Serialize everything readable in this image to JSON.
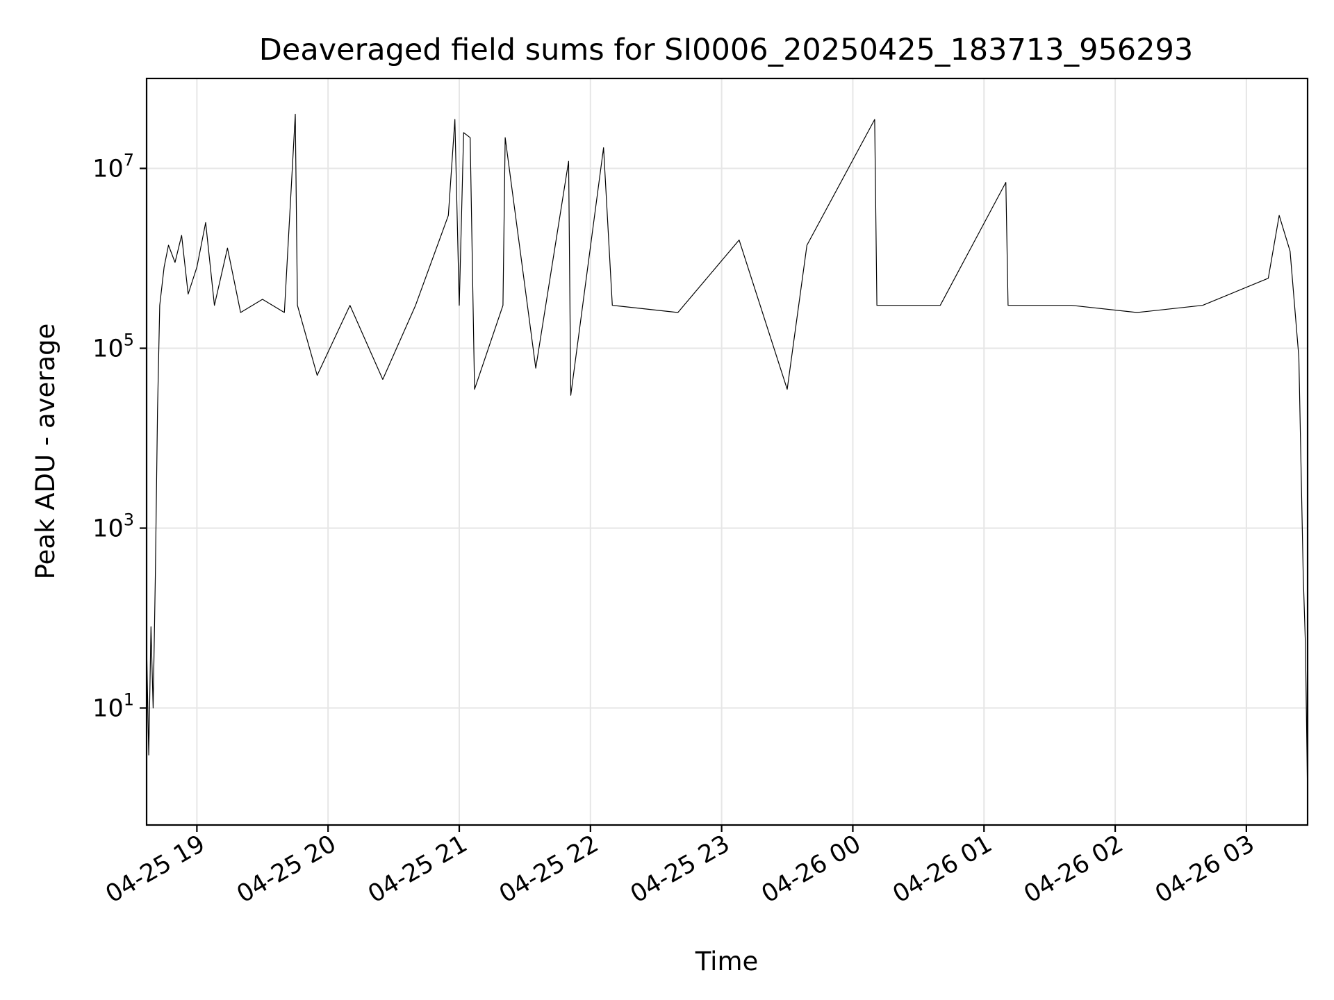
{
  "chart_data": {
    "type": "line",
    "title": "Deaveraged field sums for SI0006_20250425_183713_956293",
    "xlabel": "Time",
    "ylabel": "Peak ADU - average",
    "yscale": "log",
    "ylim": [
      0.5,
      100000000
    ],
    "xlim": [
      "2025-04-25 18:37",
      "2025-04-26 03:28"
    ],
    "grid": true,
    "line_color": "#000000",
    "x_ticks": [
      {
        "t": "2025-04-25 19:00",
        "label": "04-25 19"
      },
      {
        "t": "2025-04-25 20:00",
        "label": "04-25 20"
      },
      {
        "t": "2025-04-25 21:00",
        "label": "04-25 21"
      },
      {
        "t": "2025-04-25 22:00",
        "label": "04-25 22"
      },
      {
        "t": "2025-04-25 23:00",
        "label": "04-25 23"
      },
      {
        "t": "2025-04-26 00:00",
        "label": "04-26 00"
      },
      {
        "t": "2025-04-26 01:00",
        "label": "04-26 01"
      },
      {
        "t": "2025-04-26 02:00",
        "label": "04-26 02"
      },
      {
        "t": "2025-04-26 03:00",
        "label": "04-26 03"
      }
    ],
    "y_ticks": [
      {
        "value": 10,
        "base": "10",
        "exp": "1"
      },
      {
        "value": 1000,
        "base": "10",
        "exp": "3"
      },
      {
        "value": 100000,
        "base": "10",
        "exp": "5"
      },
      {
        "value": 10000000,
        "base": "10",
        "exp": "7"
      }
    ],
    "series": [
      {
        "points": [
          [
            "2025-04-25 18:37",
            50
          ],
          [
            "2025-04-25 18:38",
            3
          ],
          [
            "2025-04-25 18:39",
            80
          ],
          [
            "2025-04-25 18:40",
            10
          ],
          [
            "2025-04-25 18:41",
            300
          ],
          [
            "2025-04-25 18:42",
            20000
          ],
          [
            "2025-04-25 18:43",
            300000
          ],
          [
            "2025-04-25 18:45",
            800000
          ],
          [
            "2025-04-25 18:47",
            1400000
          ],
          [
            "2025-04-25 18:50",
            900000
          ],
          [
            "2025-04-25 18:53",
            1800000
          ],
          [
            "2025-04-25 18:56",
            400000
          ],
          [
            "2025-04-25 19:00",
            800000
          ],
          [
            "2025-04-25 19:04",
            2500000
          ],
          [
            "2025-04-25 19:08",
            300000
          ],
          [
            "2025-04-25 19:14",
            1300000
          ],
          [
            "2025-04-25 19:20",
            250000
          ],
          [
            "2025-04-25 19:30",
            350000
          ],
          [
            "2025-04-25 19:40",
            250000
          ],
          [
            "2025-04-25 19:45",
            40000000
          ],
          [
            "2025-04-25 19:46",
            300000
          ],
          [
            "2025-04-25 19:55",
            50000
          ],
          [
            "2025-04-25 20:10",
            300000
          ],
          [
            "2025-04-25 20:25",
            45000
          ],
          [
            "2025-04-25 20:40",
            300000
          ],
          [
            "2025-04-25 20:55",
            3000000
          ],
          [
            "2025-04-25 20:58",
            35000000
          ],
          [
            "2025-04-25 21:00",
            300000
          ],
          [
            "2025-04-25 21:02",
            25000000
          ],
          [
            "2025-04-25 21:05",
            22000000
          ],
          [
            "2025-04-25 21:07",
            35000
          ],
          [
            "2025-04-25 21:20",
            300000
          ],
          [
            "2025-04-25 21:21",
            22000000
          ],
          [
            "2025-04-25 21:35",
            60000
          ],
          [
            "2025-04-25 21:50",
            12000000
          ],
          [
            "2025-04-25 21:51",
            30000
          ],
          [
            "2025-04-25 22:06",
            17000000
          ],
          [
            "2025-04-25 22:10",
            300000
          ],
          [
            "2025-04-25 22:40",
            250000
          ],
          [
            "2025-04-25 23:08",
            1600000
          ],
          [
            "2025-04-25 23:30",
            35000
          ],
          [
            "2025-04-25 23:39",
            1400000
          ],
          [
            "2025-04-26 00:10",
            35000000
          ],
          [
            "2025-04-26 00:11",
            300000
          ],
          [
            "2025-04-26 00:40",
            300000
          ],
          [
            "2025-04-26 01:10",
            7000000
          ],
          [
            "2025-04-26 01:11",
            300000
          ],
          [
            "2025-04-26 01:40",
            300000
          ],
          [
            "2025-04-26 02:10",
            250000
          ],
          [
            "2025-04-26 02:40",
            300000
          ],
          [
            "2025-04-26 03:10",
            600000
          ],
          [
            "2025-04-26 03:15",
            3000000
          ],
          [
            "2025-04-26 03:20",
            1200000
          ],
          [
            "2025-04-26 03:24",
            80000
          ],
          [
            "2025-04-26 03:26",
            300
          ],
          [
            "2025-04-26 03:27",
            50
          ],
          [
            "2025-04-26 03:28",
            1
          ]
        ]
      }
    ]
  }
}
